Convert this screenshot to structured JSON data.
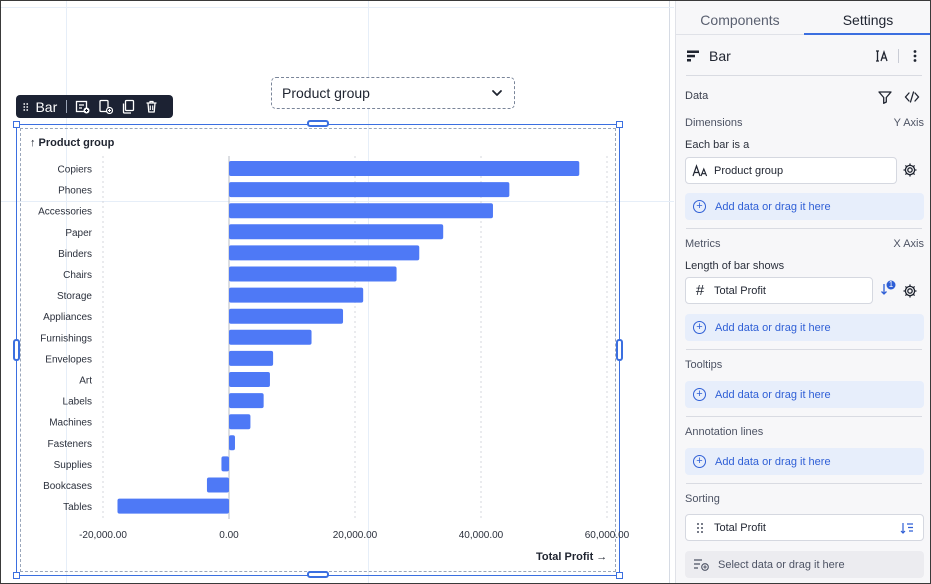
{
  "filter": {
    "label": "Product group"
  },
  "toolbar": {
    "label": "Bar"
  },
  "panel": {
    "tabs": [
      "Components",
      "Settings"
    ],
    "title": "Bar",
    "sections": {
      "data": "Data",
      "dimensions": "Dimensions",
      "dimensions_axis": "Y Axis",
      "each_bar": "Each bar is a",
      "dimension_field": "Product group",
      "add_data": "Add data or drag it here",
      "metrics": "Metrics",
      "metrics_axis": "X Axis",
      "length_shows": "Length of bar shows",
      "metric_field": "Total Profit",
      "sort_badge": "1",
      "tooltips": "Tooltips",
      "annotation": "Annotation lines",
      "sorting": "Sorting",
      "sort_field": "Total Profit",
      "select_data": "Select data or drag it here"
    }
  },
  "colors": {
    "bar": "#4e79f6",
    "accent": "#3b6fe0"
  },
  "chart_data": {
    "type": "bar",
    "orientation": "horizontal",
    "y_title": "↑ Product group",
    "x_title": "Total Profit →",
    "categories": [
      "Copiers",
      "Phones",
      "Accessories",
      "Paper",
      "Binders",
      "Chairs",
      "Storage",
      "Appliances",
      "Furnishings",
      "Envelopes",
      "Art",
      "Labels",
      "Machines",
      "Fasteners",
      "Supplies",
      "Bookcases",
      "Tables"
    ],
    "values": [
      55600,
      44500,
      41900,
      34000,
      30200,
      26600,
      21300,
      18100,
      13100,
      7000,
      6500,
      5500,
      3400,
      950,
      -1200,
      -3500,
      -17700
    ],
    "xlim": [
      -20000,
      60000
    ],
    "xticks": [
      "-20,000.00",
      "0.00",
      "20,000.00",
      "40,000.00",
      "60,000.00"
    ],
    "xtick_values": [
      -20000,
      0,
      20000,
      40000,
      60000
    ]
  }
}
